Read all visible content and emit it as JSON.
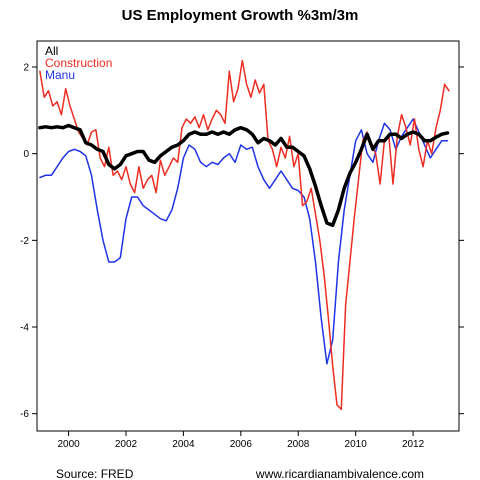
{
  "chart_data": {
    "type": "line",
    "title": "US Employment Growth %3m/3m",
    "xlabel": "",
    "ylabel": "",
    "xlim": [
      1998.9,
      2013.6
    ],
    "ylim": [
      -6.4,
      2.6
    ],
    "x_ticks": [
      2000,
      2002,
      2004,
      2006,
      2008,
      2010,
      2012
    ],
    "x_tick_labels": [
      "2000",
      "2002",
      "2004",
      "2006",
      "2008",
      "2010",
      "2012"
    ],
    "y_ticks": [
      -6,
      -4,
      -2,
      0,
      2
    ],
    "y_tick_labels": [
      "-6",
      "-4",
      "-2",
      "0",
      "2"
    ],
    "grid": false,
    "legend_position": "top-left",
    "series": [
      {
        "name": "All",
        "color": "#000000",
        "x": [
          1999.0,
          1999.2,
          1999.4,
          1999.6,
          1999.8,
          2000.0,
          2000.2,
          2000.4,
          2000.6,
          2000.8,
          2001.0,
          2001.2,
          2001.4,
          2001.6,
          2001.8,
          2002.0,
          2002.2,
          2002.4,
          2002.6,
          2002.8,
          2003.0,
          2003.2,
          2003.4,
          2003.6,
          2003.8,
          2004.0,
          2004.2,
          2004.4,
          2004.6,
          2004.8,
          2005.0,
          2005.2,
          2005.4,
          2005.6,
          2005.8,
          2006.0,
          2006.2,
          2006.4,
          2006.6,
          2006.8,
          2007.0,
          2007.2,
          2007.4,
          2007.6,
          2007.8,
          2008.0,
          2008.2,
          2008.4,
          2008.6,
          2008.8,
          2009.0,
          2009.2,
          2009.4,
          2009.6,
          2009.8,
          2010.0,
          2010.2,
          2010.4,
          2010.6,
          2010.8,
          2011.0,
          2011.2,
          2011.4,
          2011.6,
          2011.8,
          2012.0,
          2012.2,
          2012.4,
          2012.6,
          2012.8,
          2013.0,
          2013.2
        ],
        "values": [
          0.6,
          0.62,
          0.6,
          0.62,
          0.6,
          0.65,
          0.6,
          0.55,
          0.25,
          0.2,
          0.1,
          0.05,
          -0.25,
          -0.35,
          -0.25,
          -0.05,
          0.0,
          0.05,
          0.05,
          -0.15,
          -0.2,
          -0.05,
          0.05,
          0.15,
          0.2,
          0.3,
          0.45,
          0.5,
          0.45,
          0.45,
          0.5,
          0.45,
          0.5,
          0.45,
          0.55,
          0.6,
          0.55,
          0.45,
          0.25,
          0.35,
          0.3,
          0.2,
          0.35,
          0.15,
          0.15,
          0.05,
          -0.05,
          -0.35,
          -0.75,
          -1.2,
          -1.6,
          -1.65,
          -1.3,
          -0.8,
          -0.45,
          -0.2,
          0.1,
          0.45,
          0.1,
          0.3,
          0.3,
          0.45,
          0.45,
          0.35,
          0.45,
          0.5,
          0.45,
          0.3,
          0.3,
          0.38,
          0.45,
          0.48
        ]
      },
      {
        "name": "Construction",
        "color": "#ee2d22",
        "x": [
          1999.0,
          1999.15,
          1999.3,
          1999.45,
          1999.6,
          1999.75,
          1999.9,
          2000.05,
          2000.2,
          2000.35,
          2000.5,
          2000.65,
          2000.8,
          2000.95,
          2001.1,
          2001.25,
          2001.4,
          2001.55,
          2001.7,
          2001.85,
          2002.0,
          2002.15,
          2002.3,
          2002.45,
          2002.6,
          2002.75,
          2002.9,
          2003.05,
          2003.2,
          2003.35,
          2003.5,
          2003.65,
          2003.8,
          2003.95,
          2004.1,
          2004.25,
          2004.4,
          2004.55,
          2004.7,
          2004.85,
          2005.0,
          2005.15,
          2005.3,
          2005.45,
          2005.6,
          2005.75,
          2005.9,
          2006.05,
          2006.2,
          2006.35,
          2006.5,
          2006.65,
          2006.8,
          2006.95,
          2007.1,
          2007.25,
          2007.4,
          2007.55,
          2007.7,
          2007.85,
          2008.0,
          2008.15,
          2008.3,
          2008.45,
          2008.6,
          2008.75,
          2008.9,
          2009.05,
          2009.2,
          2009.35,
          2009.5,
          2009.65,
          2009.8,
          2009.95,
          2010.1,
          2010.25,
          2010.4,
          2010.55,
          2010.7,
          2010.85,
          2011.0,
          2011.15,
          2011.3,
          2011.45,
          2011.6,
          2011.75,
          2011.9,
          2012.05,
          2012.2,
          2012.35,
          2012.5,
          2012.65,
          2012.8,
          2012.95,
          2013.1,
          2013.25
        ],
        "values": [
          1.9,
          1.3,
          1.45,
          1.1,
          1.2,
          0.9,
          1.5,
          1.1,
          0.8,
          0.5,
          0.35,
          0.2,
          0.5,
          0.55,
          -0.1,
          -0.3,
          0.15,
          -0.5,
          -0.4,
          -0.6,
          -0.3,
          -0.7,
          -0.9,
          -0.3,
          -0.8,
          -0.6,
          -0.5,
          -0.9,
          -0.15,
          -0.5,
          -0.3,
          -0.1,
          -0.2,
          0.6,
          0.8,
          0.7,
          0.85,
          0.6,
          0.9,
          0.55,
          0.8,
          1.0,
          0.9,
          0.7,
          1.9,
          1.2,
          1.5,
          2.15,
          1.6,
          1.3,
          1.7,
          1.4,
          1.6,
          0.3,
          0.1,
          -0.3,
          0.15,
          -0.1,
          0.4,
          -0.3,
          0.0,
          -1.2,
          -1.1,
          -0.8,
          -1.4,
          -2.0,
          -2.8,
          -3.8,
          -4.9,
          -5.8,
          -5.9,
          -3.5,
          -2.5,
          -1.5,
          -0.6,
          0.3,
          0.5,
          0.2,
          0.0,
          -0.7,
          0.3,
          0.45,
          -0.7,
          0.4,
          0.9,
          0.6,
          0.2,
          0.8,
          0.1,
          -0.3,
          0.3,
          0.0,
          0.6,
          1.0,
          1.6,
          1.45
        ]
      },
      {
        "name": "Manu",
        "color": "#1f33e8",
        "x": [
          1999.0,
          1999.2,
          1999.4,
          1999.6,
          1999.8,
          2000.0,
          2000.2,
          2000.4,
          2000.6,
          2000.8,
          2001.0,
          2001.2,
          2001.4,
          2001.6,
          2001.8,
          2002.0,
          2002.2,
          2002.4,
          2002.6,
          2002.8,
          2003.0,
          2003.2,
          2003.4,
          2003.6,
          2003.8,
          2004.0,
          2004.2,
          2004.4,
          2004.6,
          2004.8,
          2005.0,
          2005.2,
          2005.4,
          2005.6,
          2005.8,
          2006.0,
          2006.2,
          2006.4,
          2006.6,
          2006.8,
          2007.0,
          2007.2,
          2007.4,
          2007.6,
          2007.8,
          2008.0,
          2008.2,
          2008.4,
          2008.6,
          2008.8,
          2009.0,
          2009.2,
          2009.4,
          2009.6,
          2009.8,
          2010.0,
          2010.2,
          2010.4,
          2010.6,
          2010.8,
          2011.0,
          2011.2,
          2011.4,
          2011.6,
          2011.8,
          2012.0,
          2012.2,
          2012.4,
          2012.6,
          2012.8,
          2013.0,
          2013.2
        ],
        "values": [
          -0.55,
          -0.5,
          -0.5,
          -0.3,
          -0.1,
          0.05,
          0.1,
          0.05,
          -0.05,
          -0.5,
          -1.3,
          -2.0,
          -2.5,
          -2.5,
          -2.4,
          -1.5,
          -1.0,
          -1.0,
          -1.2,
          -1.3,
          -1.4,
          -1.5,
          -1.55,
          -1.3,
          -0.8,
          -0.1,
          0.2,
          0.1,
          -0.2,
          -0.3,
          -0.2,
          -0.25,
          -0.1,
          0.0,
          -0.2,
          0.2,
          0.1,
          0.15,
          -0.3,
          -0.6,
          -0.8,
          -0.6,
          -0.4,
          -0.6,
          -0.8,
          -0.85,
          -1.0,
          -1.5,
          -2.5,
          -3.8,
          -4.85,
          -4.3,
          -2.5,
          -1.3,
          -0.5,
          0.3,
          0.55,
          0.0,
          -0.2,
          0.3,
          0.7,
          0.55,
          0.1,
          0.4,
          0.6,
          0.8,
          0.5,
          0.2,
          -0.1,
          0.1,
          0.3,
          0.3
        ]
      }
    ],
    "footer": {
      "source": "Source: FRED",
      "site": "www.ricardianambivalence.com"
    }
  }
}
